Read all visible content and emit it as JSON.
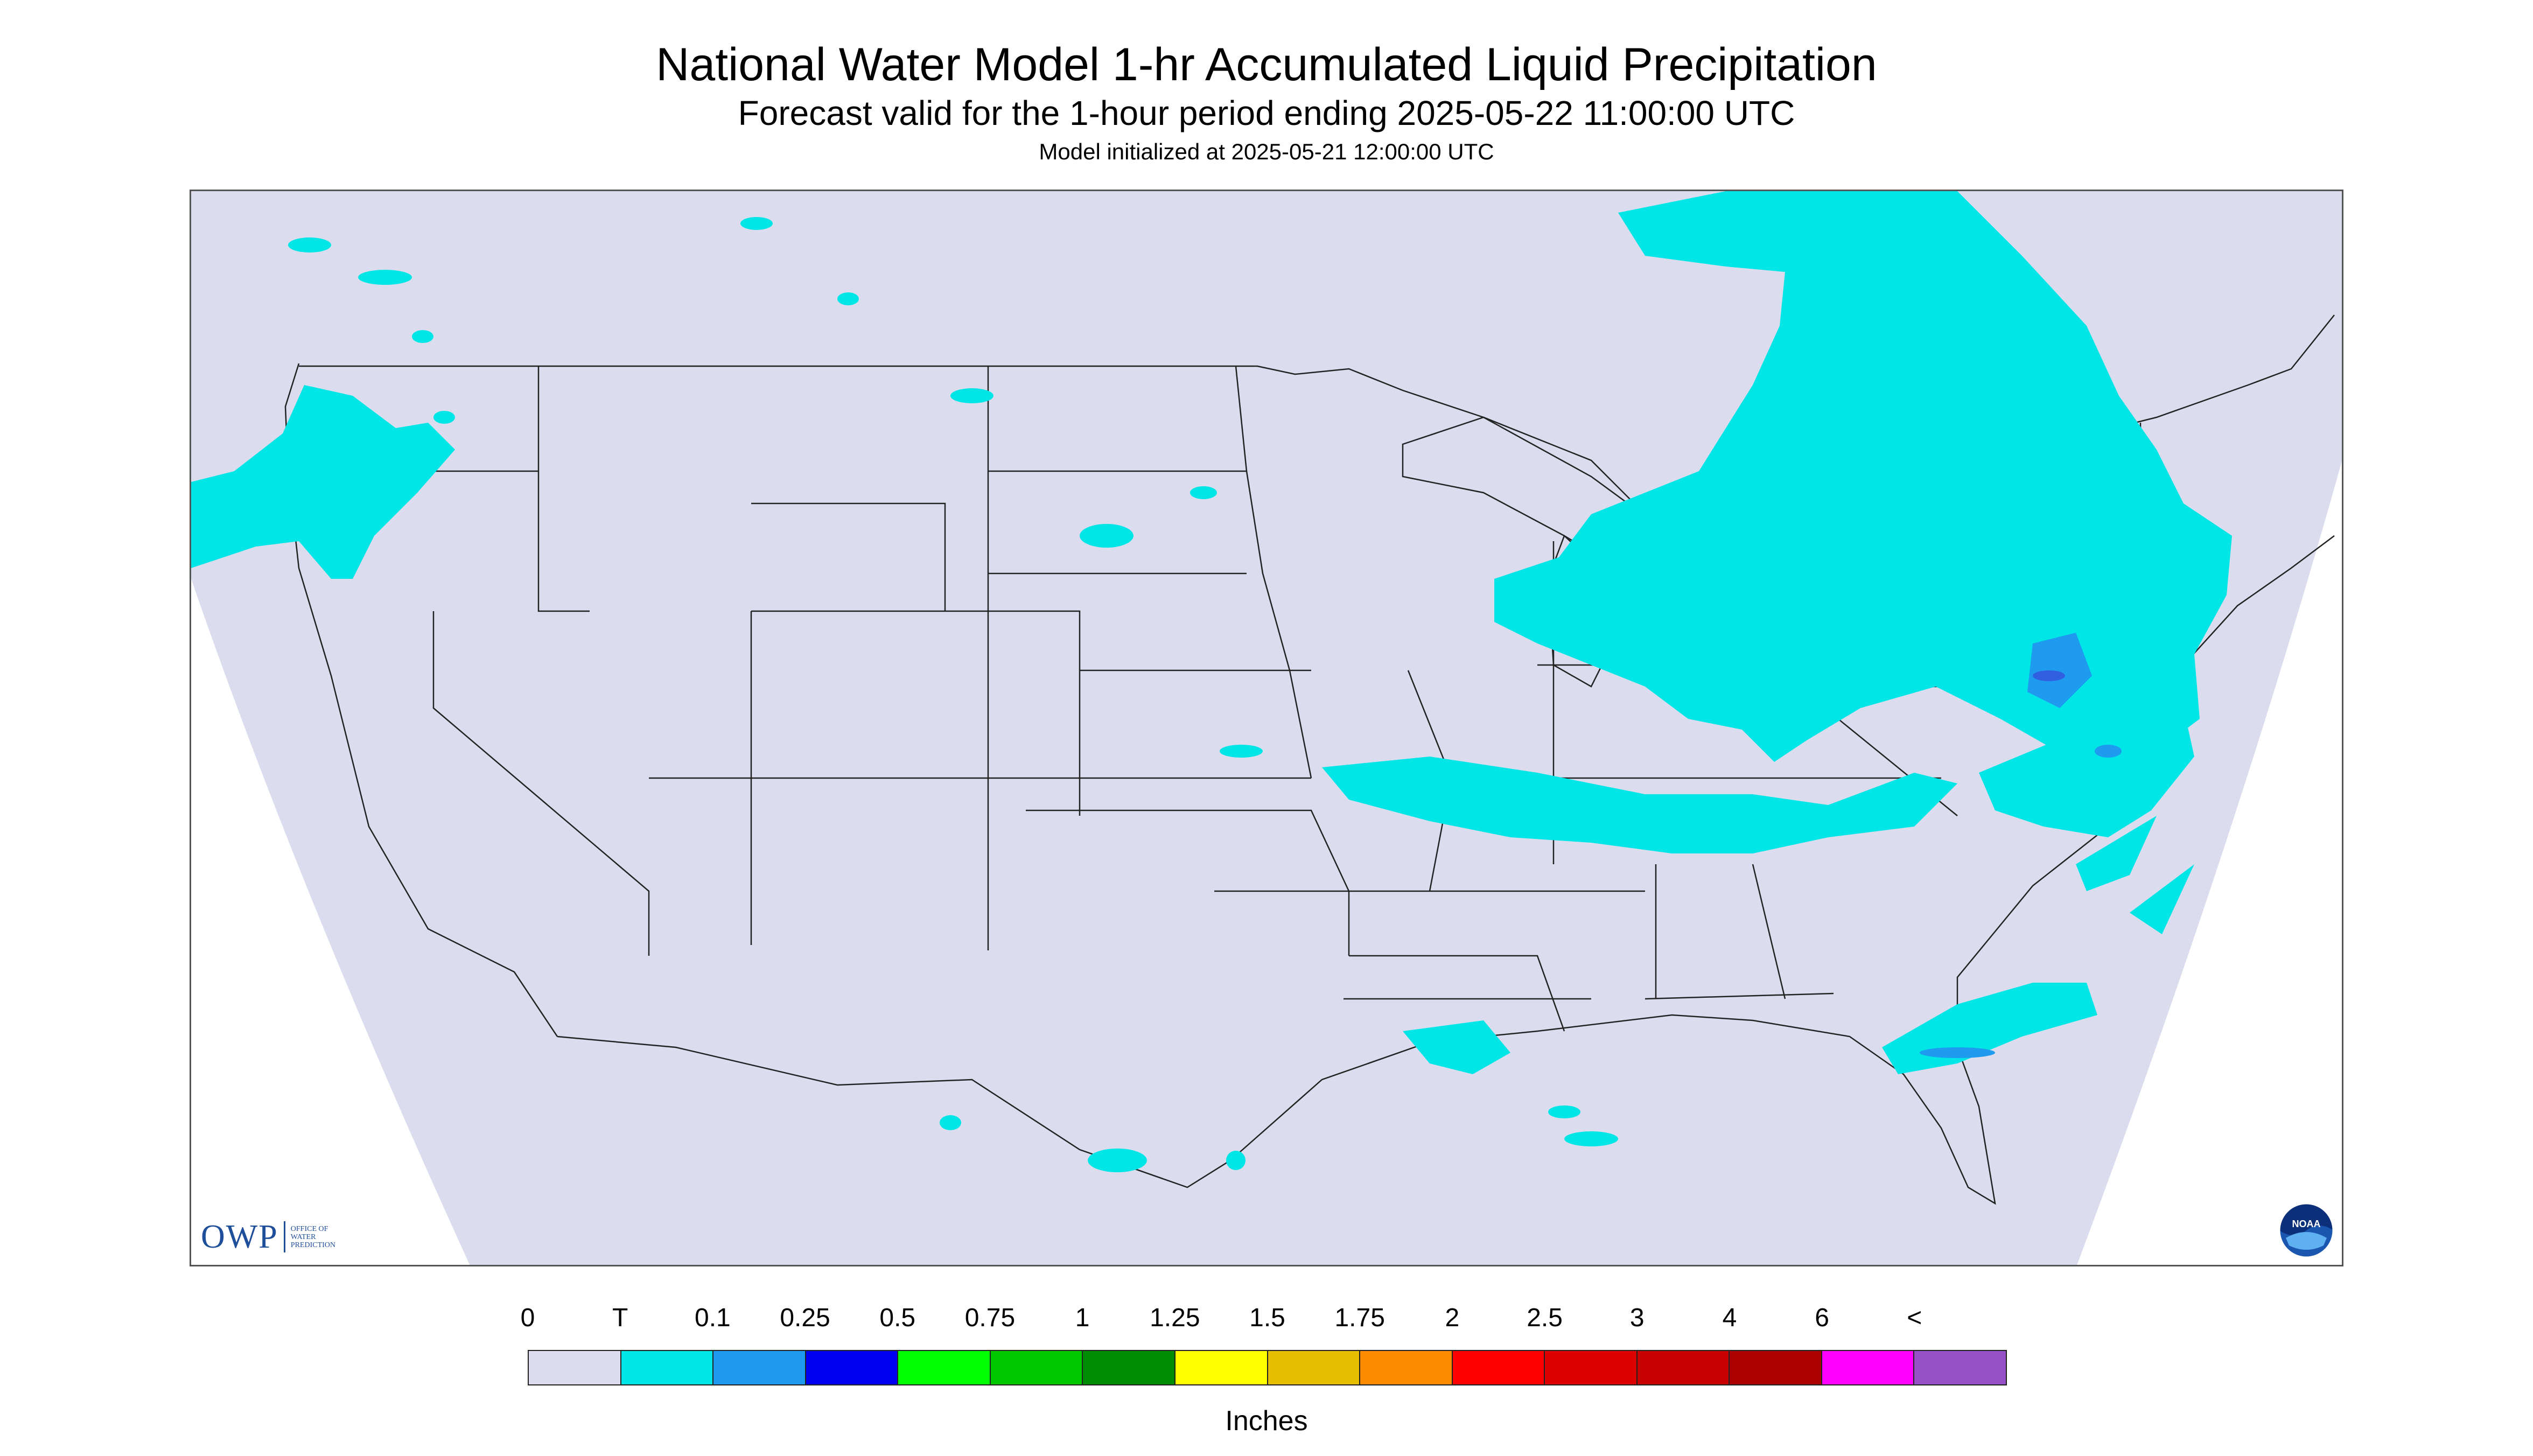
{
  "title": "National Water Model 1-hr Accumulated Liquid Precipitation",
  "subtitle": "Forecast valid for the 1-hour period ending 2025-05-22 11:00:00 UTC",
  "init_line": "Model initialized at 2025-05-21 12:00:00 UTC",
  "colors": {
    "domain_fill": "#dcdcef",
    "outside_fill": "#ffffff",
    "boundary_line": "#222222",
    "precip_trace": "#00e5e5",
    "precip_0_1": "#1e9bef",
    "precip_0_25": "#3060e0"
  },
  "logos": {
    "owp": {
      "text": "OWP",
      "subtext": [
        "OFFICE OF",
        "WATER",
        "PREDICTION"
      ]
    },
    "noaa": {
      "text": "NOAA"
    }
  },
  "legend": {
    "unit_label": "Inches",
    "tick_labels": [
      "0",
      "T",
      "0.1",
      "0.25",
      "0.5",
      "0.75",
      "1",
      "1.25",
      "1.5",
      "1.75",
      "2",
      "2.5",
      "3",
      "4",
      "6",
      "<"
    ],
    "bin_colors": [
      "#dcdcef",
      "#00e5e5",
      "#1e9bef",
      "#0000f0",
      "#00ff00",
      "#00c800",
      "#008c00",
      "#ffff00",
      "#e6be00",
      "#ff8c00",
      "#ff0000",
      "#dc0000",
      "#c80000",
      "#aa0000",
      "#ff00ff",
      "#9650c8"
    ]
  }
}
